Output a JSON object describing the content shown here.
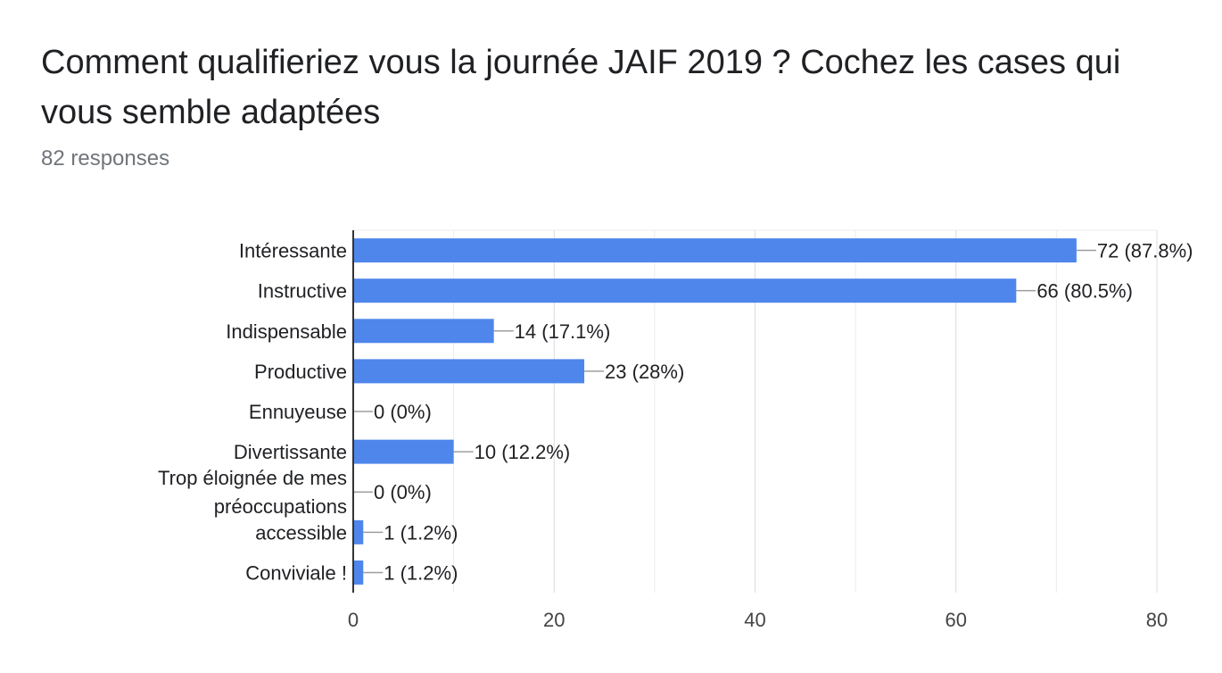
{
  "title": "Comment qualifieriez vous la journée JAIF 2019 ? Cochez les cases qui vous semble adaptées",
  "subtitle": "82 responses",
  "chart_data": {
    "type": "bar",
    "orientation": "horizontal",
    "categories": [
      [
        "Intéressante"
      ],
      [
        "Instructive"
      ],
      [
        "Indispensable"
      ],
      [
        "Productive"
      ],
      [
        "Ennuyeuse"
      ],
      [
        "Divertissante"
      ],
      [
        "Trop éloignée de mes",
        "préoccupations"
      ],
      [
        "accessible"
      ],
      [
        "Conviviale !"
      ]
    ],
    "values": [
      72,
      66,
      14,
      23,
      0,
      10,
      0,
      1,
      1
    ],
    "data_labels": [
      "72 (87.8%)",
      "66 (80.5%)",
      "14 (17.1%)",
      "23 (28%)",
      "0 (0%)",
      "10 (12.2%)",
      "0 (0%)",
      "1 (1.2%)",
      "1 (1.2%)"
    ],
    "xlim": [
      0,
      80
    ],
    "xticks": [
      0,
      20,
      40,
      60,
      80
    ],
    "grid": true,
    "bar_color": "#4f86ec",
    "legend": "none"
  }
}
